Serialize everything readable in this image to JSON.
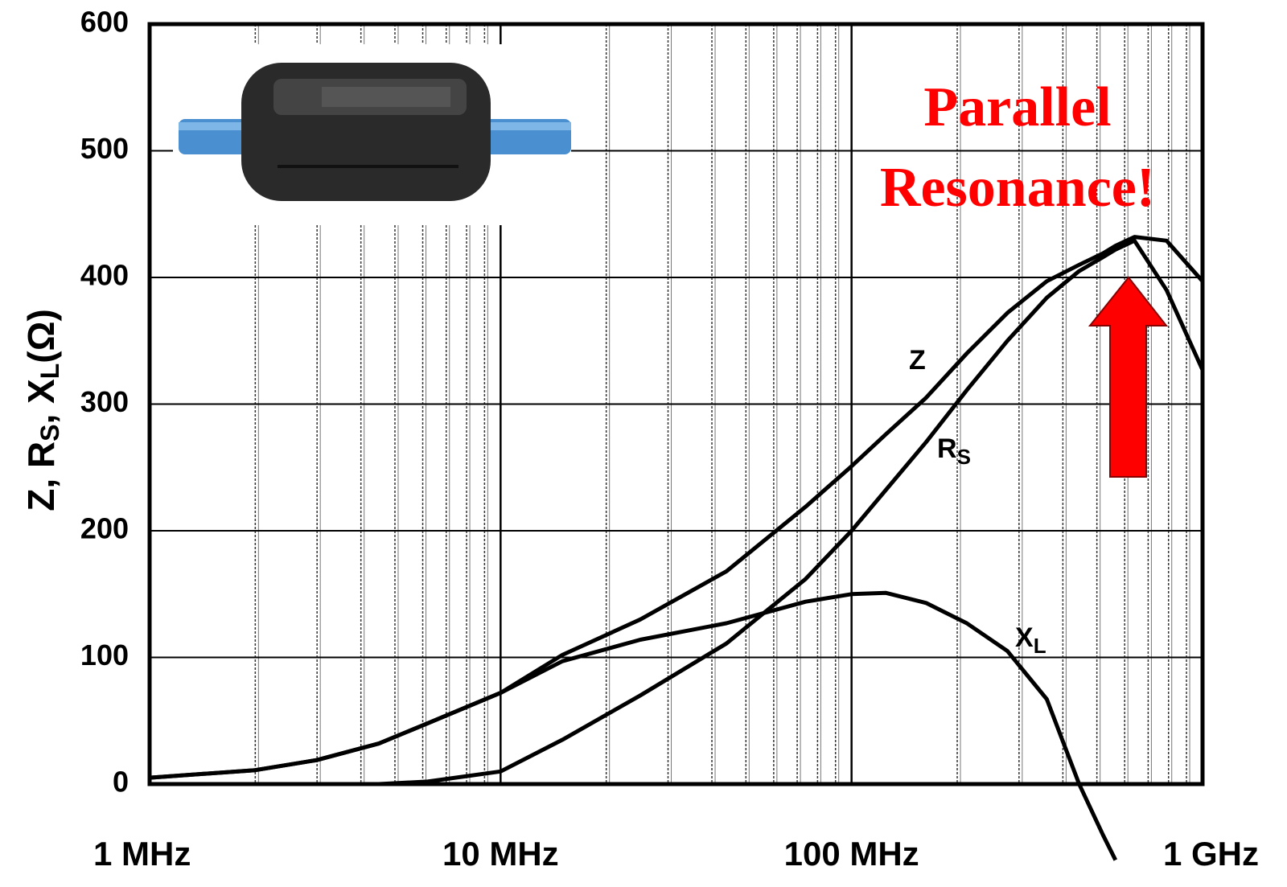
{
  "chart_data": {
    "type": "line",
    "y_label_parts": [
      "Z, R",
      "S",
      ", X",
      "L",
      "(Ω)"
    ],
    "x": [
      1,
      2,
      3,
      4.5,
      6.2,
      10,
      15,
      25,
      44,
      74,
      100,
      125,
      163,
      213,
      278,
      360,
      445,
      520,
      565,
      640,
      790,
      1000
    ],
    "series": [
      {
        "name": "Z",
        "color": "#000000",
        "values": [
          5,
          11,
          19,
          32,
          48,
          72,
          102,
          130,
          168,
          219,
          251,
          276,
          305,
          340,
          372,
          397,
          410,
          419,
          425,
          432,
          429,
          397
        ]
      },
      {
        "name": "R",
        "name_sub": "S",
        "color": "#000000",
        "values": [
          0,
          0,
          0,
          0,
          2,
          10,
          35,
          70,
          111,
          162,
          200,
          232,
          270,
          311,
          350,
          384,
          405,
          416,
          422,
          429,
          390,
          327
        ]
      },
      {
        "name": "X",
        "name_sub": "L",
        "color": "#000000",
        "values": [
          5,
          11,
          19,
          32,
          48,
          72,
          97,
          114,
          127,
          144,
          150,
          151,
          143,
          127,
          105,
          67,
          0,
          -40,
          -60,
          null,
          null,
          null
        ]
      }
    ],
    "xlog": true,
    "xlim": [
      1,
      1000
    ],
    "xticks": [
      {
        "value": 1,
        "label": "1 MHz"
      },
      {
        "value": 10,
        "label": "10 MHz"
      },
      {
        "value": 100,
        "label": "100 MHz"
      },
      {
        "value": 1000,
        "label": "1 GHz"
      }
    ],
    "ylim": [
      0,
      600
    ],
    "yticks": [
      0,
      100,
      200,
      300,
      400,
      500,
      600
    ],
    "grid": true,
    "annotation": [
      "Parallel",
      "Resonance!"
    ],
    "annotation_color": "#ff0000"
  }
}
